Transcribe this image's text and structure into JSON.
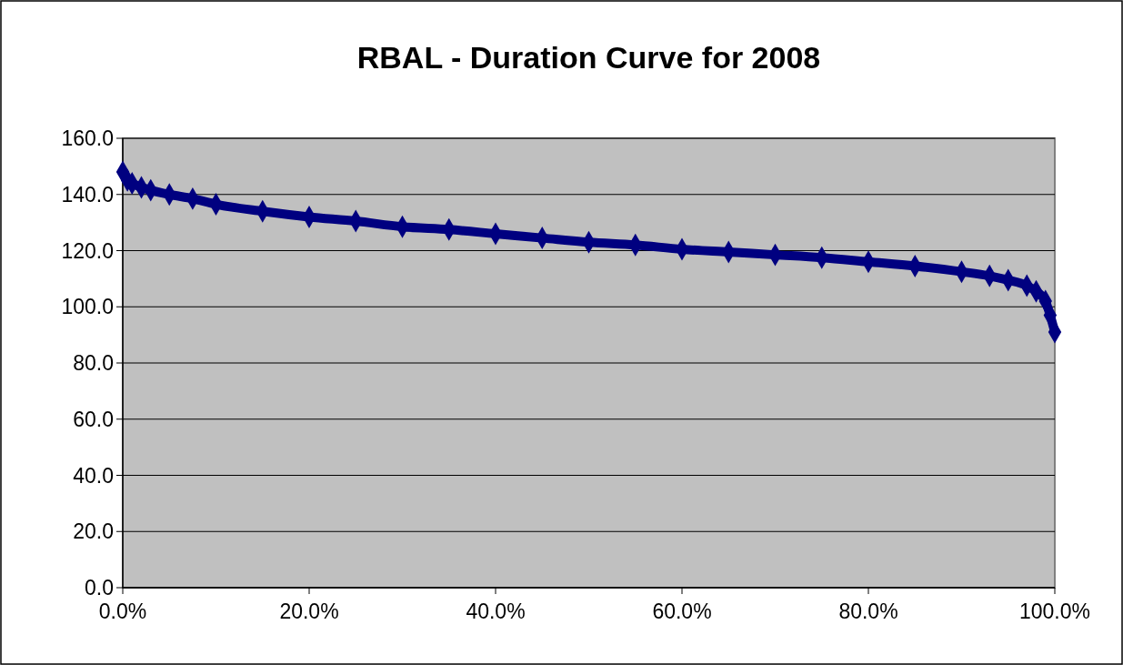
{
  "chart_data": {
    "type": "line",
    "title": "RBAL - Duration Curve for 2008",
    "x": [
      0,
      0.5,
      1,
      2,
      3,
      5,
      7.5,
      10,
      15,
      20,
      25,
      30,
      35,
      40,
      45,
      50,
      55,
      60,
      65,
      70,
      75,
      80,
      85,
      90,
      93,
      95,
      97,
      98,
      99,
      99.5,
      100
    ],
    "series": [
      {
        "color": "#000080",
        "values": [
          148,
          145,
          144,
          142.5,
          141.5,
          140,
          138.5,
          136.5,
          134,
          132,
          130.5,
          128.5,
          127.5,
          126,
          124.5,
          123,
          122,
          120.5,
          119.5,
          118.5,
          117.5,
          116,
          114.5,
          112.5,
          111,
          109.5,
          107.5,
          105.5,
          102,
          97,
          91
        ]
      }
    ],
    "xlim": [
      0,
      100
    ],
    "xticks": [
      {
        "value": 0,
        "label": "0.0%"
      },
      {
        "value": 20,
        "label": "20.0%"
      },
      {
        "value": 40,
        "label": "40.0%"
      },
      {
        "value": 60,
        "label": "60.0%"
      },
      {
        "value": 80,
        "label": "80.0%"
      },
      {
        "value": 100,
        "label": "100.0%"
      }
    ],
    "ylim": [
      0,
      160
    ],
    "yticks": [
      {
        "value": 0,
        "label": "0.0"
      },
      {
        "value": 20,
        "label": "20.0"
      },
      {
        "value": 40,
        "label": "40.0"
      },
      {
        "value": 60,
        "label": "60.0"
      },
      {
        "value": 80,
        "label": "80.0"
      },
      {
        "value": 100,
        "label": "100.0"
      },
      {
        "value": 120,
        "label": "120.0"
      },
      {
        "value": 140,
        "label": "140.0"
      },
      {
        "value": 160,
        "label": "160.0"
      }
    ],
    "grid": "y",
    "marker": "diamond",
    "line_style": "solid"
  }
}
